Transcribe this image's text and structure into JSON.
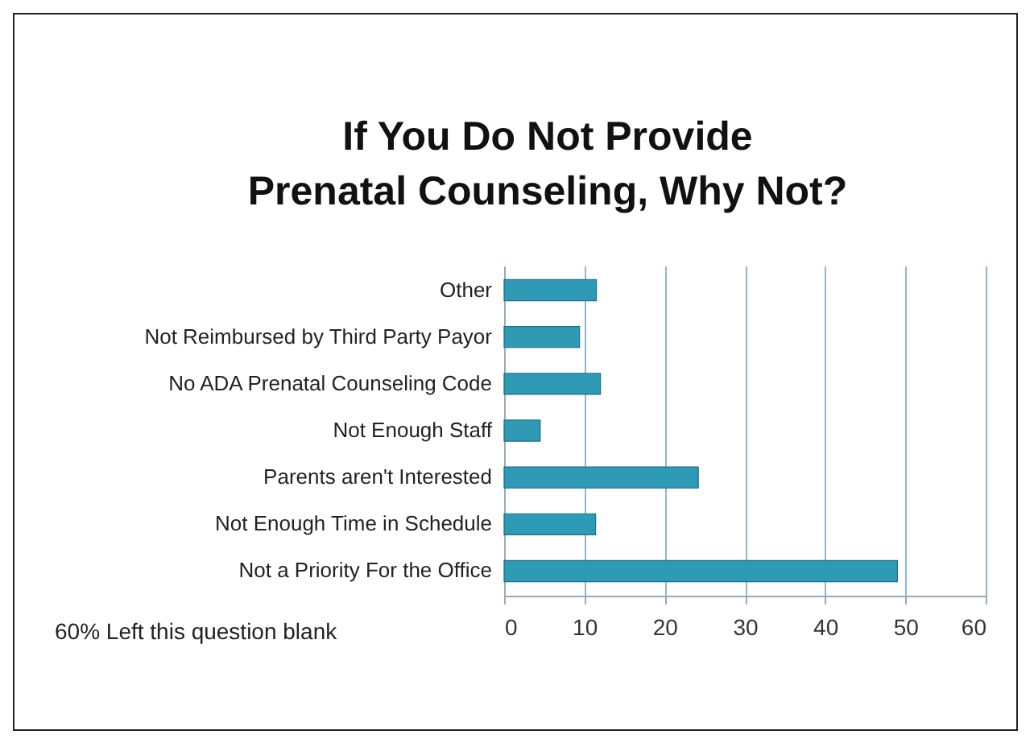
{
  "chart_data": {
    "type": "bar",
    "orientation": "horizontal",
    "title": "If You Do Not Provide Prenatal Counseling, Why Not?",
    "categories": [
      "Other",
      "Not Reimbursed by Third Party Payor",
      "No ADA Prenatal Counseling Code",
      "Not Enough Staff",
      "Parents aren't Interested",
      "Not Enough Time in Schedule",
      "Not a Priority For the Office"
    ],
    "values": [
      11.5,
      9.4,
      12,
      4.5,
      24.2,
      11.4,
      49
    ],
    "color": "#2e9ab5",
    "xlim": [
      0,
      60
    ],
    "xticks": [
      0,
      10,
      20,
      30,
      40,
      50,
      60
    ],
    "grid": "x",
    "annotations": [
      "60% Left this question blank"
    ]
  }
}
